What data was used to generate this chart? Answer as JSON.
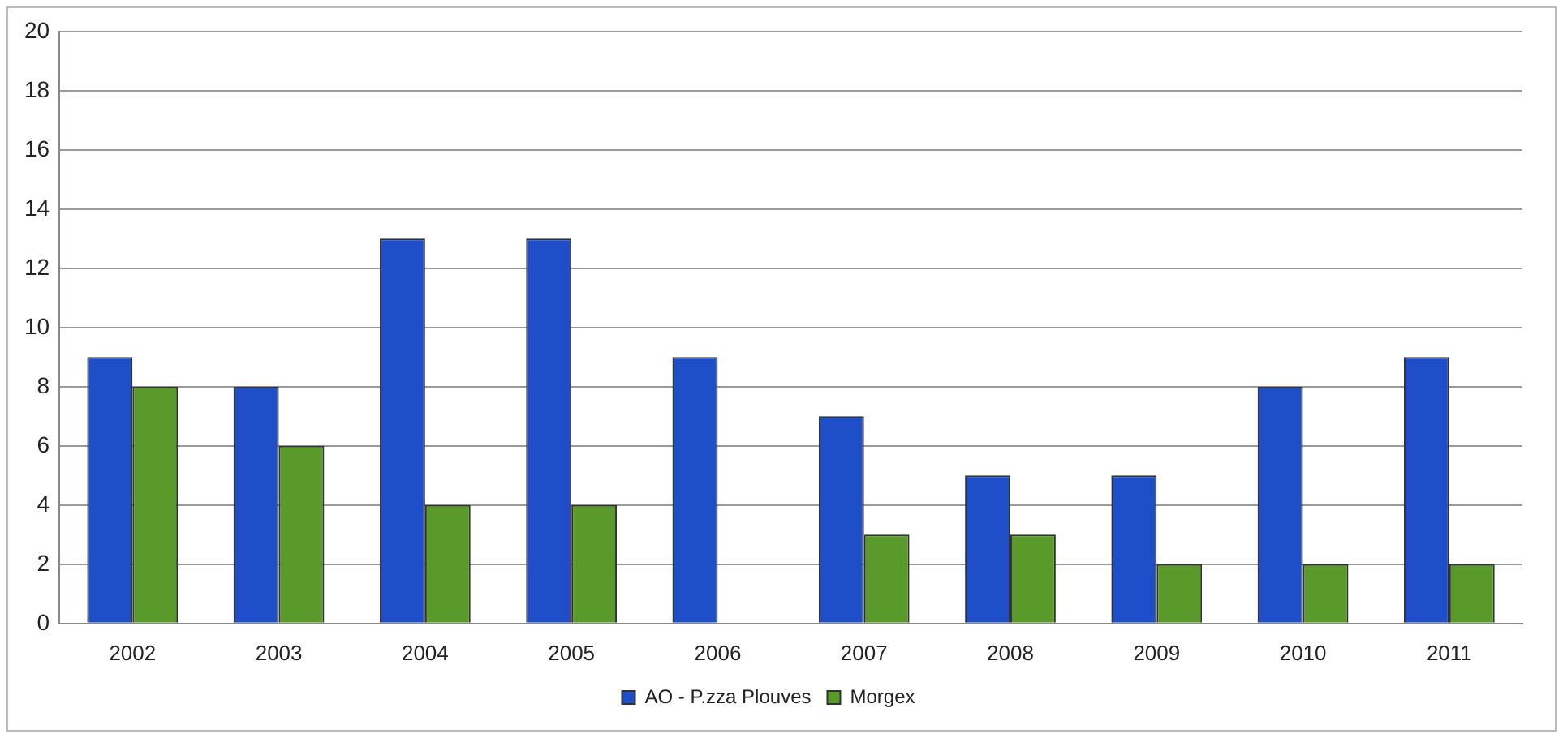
{
  "chart_data": {
    "type": "bar",
    "categories": [
      "2002",
      "2003",
      "2004",
      "2005",
      "2006",
      "2007",
      "2008",
      "2009",
      "2010",
      "2011"
    ],
    "series": [
      {
        "name": "AO - P.zza Plouves",
        "color": "#1f4fc8",
        "values": [
          9,
          8,
          13,
          13,
          9,
          7,
          5,
          5,
          8,
          9
        ]
      },
      {
        "name": "Morgex",
        "color": "#5a9a2a",
        "values": [
          8,
          6,
          4,
          4,
          null,
          3,
          3,
          2,
          2,
          2
        ]
      }
    ],
    "ylim": [
      0,
      20
    ],
    "yticks": [
      0,
      2,
      4,
      6,
      8,
      10,
      12,
      14,
      16,
      18,
      20
    ],
    "grid": "y",
    "legend": "bottom"
  }
}
